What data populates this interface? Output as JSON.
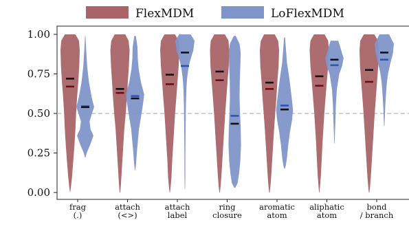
{
  "chart_data": {
    "type": "violin",
    "categories": [
      [
        "frag",
        "(.)"
      ],
      [
        "attach",
        "(<>)"
      ],
      [
        "attach",
        "label"
      ],
      [
        "ring",
        "closure"
      ],
      [
        "aromatic",
        "atom"
      ],
      [
        "aliphatic",
        "atom"
      ],
      [
        "bond",
        "/ branch"
      ]
    ],
    "ylim": [
      0,
      1
    ],
    "yticks": [
      "0.00",
      "0.25",
      "0.50",
      "0.75",
      "1.00"
    ],
    "yticks_values": [
      0,
      0.25,
      0.5,
      0.75,
      1.0
    ],
    "reference_line": 0.5,
    "legend": {
      "placement": "top",
      "entries": [
        "FlexMDM",
        "LoFlexMDM"
      ]
    },
    "colors": {
      "FlexMDM": "#a86468",
      "LoFlexMDM": "#7f95c8",
      "mean": "#111111",
      "FlexMDM_median": "#6b0d12",
      "LoFlexMDM_median": "#2f54b0",
      "reference": "#b8b8b8"
    },
    "series": [
      {
        "name": "FlexMDM",
        "means": [
          0.72,
          0.655,
          0.745,
          0.765,
          0.695,
          0.735,
          0.775
        ],
        "medians": [
          0.67,
          0.63,
          0.685,
          0.71,
          0.655,
          0.675,
          0.7
        ],
        "profiles": [
          [
            [
              1.0,
              0.55
            ],
            [
              0.96,
              0.92
            ],
            [
              0.9,
              1.0
            ],
            [
              0.8,
              0.95
            ],
            [
              0.7,
              0.85
            ],
            [
              0.6,
              0.72
            ],
            [
              0.5,
              0.62
            ],
            [
              0.4,
              0.55
            ],
            [
              0.3,
              0.45
            ],
            [
              0.2,
              0.33
            ],
            [
              0.1,
              0.2
            ],
            [
              0.03,
              0.08
            ],
            [
              0.0,
              0.01
            ]
          ],
          [
            [
              1.0,
              0.55
            ],
            [
              0.96,
              0.9
            ],
            [
              0.9,
              1.0
            ],
            [
              0.8,
              0.93
            ],
            [
              0.7,
              0.82
            ],
            [
              0.6,
              0.72
            ],
            [
              0.5,
              0.6
            ],
            [
              0.4,
              0.45
            ],
            [
              0.3,
              0.35
            ],
            [
              0.2,
              0.25
            ],
            [
              0.1,
              0.15
            ],
            [
              0.05,
              0.1
            ],
            [
              0.0,
              0.03
            ]
          ],
          [
            [
              1.0,
              0.55
            ],
            [
              0.96,
              0.92
            ],
            [
              0.9,
              1.0
            ],
            [
              0.8,
              0.92
            ],
            [
              0.7,
              0.8
            ],
            [
              0.6,
              0.68
            ],
            [
              0.5,
              0.55
            ],
            [
              0.4,
              0.45
            ],
            [
              0.3,
              0.35
            ],
            [
              0.2,
              0.25
            ],
            [
              0.1,
              0.18
            ],
            [
              0.03,
              0.08
            ],
            [
              0.0,
              0.02
            ]
          ],
          [
            [
              1.0,
              0.55
            ],
            [
              0.96,
              0.92
            ],
            [
              0.9,
              1.0
            ],
            [
              0.8,
              0.95
            ],
            [
              0.7,
              0.82
            ],
            [
              0.6,
              0.7
            ],
            [
              0.5,
              0.58
            ],
            [
              0.4,
              0.48
            ],
            [
              0.3,
              0.38
            ],
            [
              0.2,
              0.28
            ],
            [
              0.1,
              0.18
            ],
            [
              0.04,
              0.1
            ],
            [
              0.0,
              0.03
            ]
          ],
          [
            [
              1.0,
              0.55
            ],
            [
              0.96,
              0.9
            ],
            [
              0.9,
              1.0
            ],
            [
              0.8,
              0.95
            ],
            [
              0.7,
              0.82
            ],
            [
              0.6,
              0.72
            ],
            [
              0.5,
              0.6
            ],
            [
              0.4,
              0.48
            ],
            [
              0.3,
              0.38
            ],
            [
              0.2,
              0.28
            ],
            [
              0.1,
              0.18
            ],
            [
              0.04,
              0.1
            ],
            [
              0.0,
              0.03
            ]
          ],
          [
            [
              1.0,
              0.55
            ],
            [
              0.96,
              0.92
            ],
            [
              0.9,
              1.0
            ],
            [
              0.8,
              0.92
            ],
            [
              0.7,
              0.78
            ],
            [
              0.6,
              0.65
            ],
            [
              0.5,
              0.52
            ],
            [
              0.4,
              0.42
            ],
            [
              0.3,
              0.32
            ],
            [
              0.2,
              0.24
            ],
            [
              0.1,
              0.16
            ],
            [
              0.04,
              0.08
            ],
            [
              0.0,
              0.02
            ]
          ],
          [
            [
              1.0,
              0.55
            ],
            [
              0.96,
              0.92
            ],
            [
              0.9,
              1.0
            ],
            [
              0.8,
              0.95
            ],
            [
              0.7,
              0.82
            ],
            [
              0.6,
              0.7
            ],
            [
              0.5,
              0.58
            ],
            [
              0.4,
              0.48
            ],
            [
              0.3,
              0.38
            ],
            [
              0.2,
              0.28
            ],
            [
              0.1,
              0.18
            ],
            [
              0.04,
              0.1
            ],
            [
              0.0,
              0.03
            ]
          ]
        ]
      },
      {
        "name": "LoFlexMDM",
        "means": [
          0.54,
          0.595,
          0.885,
          0.435,
          0.525,
          0.84,
          0.885
        ],
        "medians": [
          0.545,
          0.61,
          0.8,
          0.485,
          0.55,
          0.805,
          0.84
        ],
        "profiles": [
          [
            [
              0.99,
              0.02
            ],
            [
              0.9,
              0.1
            ],
            [
              0.8,
              0.2
            ],
            [
              0.7,
              0.38
            ],
            [
              0.6,
              0.68
            ],
            [
              0.54,
              0.92
            ],
            [
              0.5,
              0.7
            ],
            [
              0.45,
              0.45
            ],
            [
              0.4,
              0.55
            ],
            [
              0.36,
              0.85
            ],
            [
              0.3,
              0.5
            ],
            [
              0.25,
              0.15
            ],
            [
              0.22,
              0.02
            ]
          ],
          [
            [
              0.99,
              0.08
            ],
            [
              0.92,
              0.25
            ],
            [
              0.85,
              0.28
            ],
            [
              0.78,
              0.38
            ],
            [
              0.7,
              0.6
            ],
            [
              0.62,
              0.95
            ],
            [
              0.55,
              0.8
            ],
            [
              0.48,
              0.62
            ],
            [
              0.4,
              0.4
            ],
            [
              0.33,
              0.3
            ],
            [
              0.25,
              0.18
            ],
            [
              0.18,
              0.1
            ],
            [
              0.14,
              0.02
            ]
          ],
          [
            [
              1.0,
              0.6
            ],
            [
              0.96,
              1.0
            ],
            [
              0.9,
              0.88
            ],
            [
              0.85,
              0.62
            ],
            [
              0.8,
              0.4
            ],
            [
              0.72,
              0.22
            ],
            [
              0.65,
              0.15
            ],
            [
              0.55,
              0.1
            ],
            [
              0.4,
              0.07
            ],
            [
              0.25,
              0.05
            ],
            [
              0.1,
              0.04
            ],
            [
              0.02,
              0.02
            ]
          ],
          [
            [
              0.99,
              0.1
            ],
            [
              0.94,
              0.5
            ],
            [
              0.88,
              0.62
            ],
            [
              0.8,
              0.58
            ],
            [
              0.7,
              0.52
            ],
            [
              0.6,
              0.5
            ],
            [
              0.5,
              0.55
            ],
            [
              0.4,
              0.62
            ],
            [
              0.3,
              0.65
            ],
            [
              0.2,
              0.58
            ],
            [
              0.12,
              0.45
            ],
            [
              0.06,
              0.3
            ],
            [
              0.03,
              0.05
            ]
          ],
          [
            [
              0.98,
              0.05
            ],
            [
              0.9,
              0.15
            ],
            [
              0.82,
              0.25
            ],
            [
              0.74,
              0.45
            ],
            [
              0.66,
              0.62
            ],
            [
              0.58,
              0.78
            ],
            [
              0.52,
              0.88
            ],
            [
              0.46,
              0.78
            ],
            [
              0.38,
              0.55
            ],
            [
              0.3,
              0.38
            ],
            [
              0.22,
              0.25
            ],
            [
              0.17,
              0.12
            ],
            [
              0.15,
              0.03
            ]
          ],
          [
            [
              0.96,
              0.4
            ],
            [
              0.9,
              0.7
            ],
            [
              0.85,
              0.95
            ],
            [
              0.8,
              0.8
            ],
            [
              0.75,
              0.5
            ],
            [
              0.65,
              0.25
            ],
            [
              0.55,
              0.15
            ],
            [
              0.45,
              0.1
            ],
            [
              0.38,
              0.06
            ],
            [
              0.31,
              0.02
            ]
          ],
          [
            [
              1.0,
              0.5
            ],
            [
              0.94,
              1.0
            ],
            [
              0.88,
              0.9
            ],
            [
              0.82,
              0.65
            ],
            [
              0.76,
              0.42
            ],
            [
              0.7,
              0.28
            ],
            [
              0.62,
              0.18
            ],
            [
              0.54,
              0.1
            ],
            [
              0.47,
              0.06
            ],
            [
              0.42,
              0.02
            ]
          ]
        ]
      }
    ]
  }
}
